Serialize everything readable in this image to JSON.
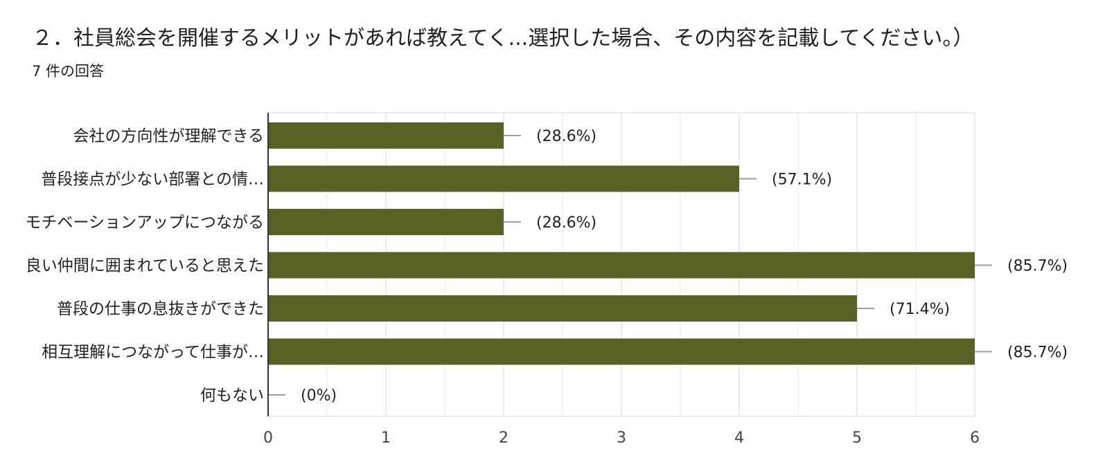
{
  "question": {
    "title": "２．社員総会を開催するメリットがあれば教えてく...選択した場合、その内容を記載してください。）",
    "response_count": "7 件の回答"
  },
  "colors": {
    "bar": "#5b6125",
    "grid": "#e6e6e6",
    "axis": "#333333",
    "error_bar": "#9e9e9e"
  },
  "chart_data": {
    "type": "bar",
    "orientation": "horizontal",
    "categories": [
      "会社の方向性が理解できる",
      "普段接点が少ない部署との情…",
      "モチベーションアップにつながる",
      "良い仲間に囲まれていると思えた",
      "普段の仕事の息抜きができた",
      "相互理解につながって仕事が…",
      "何もない"
    ],
    "values": [
      2,
      4,
      2,
      6,
      5,
      6,
      0
    ],
    "value_labels": [
      "(28.6%)",
      "(57.1%)",
      "(28.6%)",
      "(85.7%)",
      "(71.4%)",
      "(85.7%)",
      "(0%)"
    ],
    "xlim": [
      0,
      6
    ],
    "ticks": [
      "0",
      "1",
      "2",
      "3",
      "4",
      "5",
      "6"
    ],
    "grid": true,
    "legend": "none"
  }
}
